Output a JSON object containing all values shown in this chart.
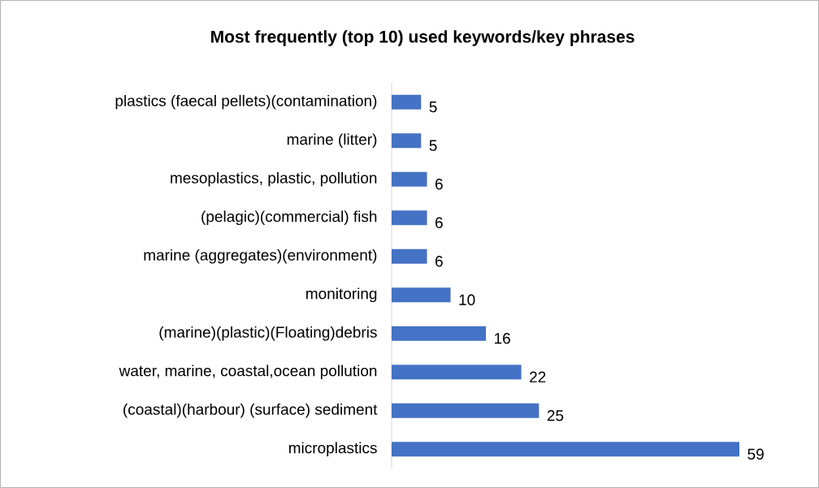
{
  "chart_data": {
    "type": "bar",
    "orientation": "horizontal",
    "title": "Most frequently (top 10) used keywords/key phrases",
    "categories": [
      "plastics (faecal pellets)(contamination)",
      "marine (litter)",
      "mesoplastics, plastic, pollution",
      "(pelagic)(commercial) fish",
      "marine (aggregates)(environment)",
      "monitoring",
      "(marine)(plastic)(Floating)debris",
      "water, marine, coastal,ocean pollution",
      "(coastal)(harbour) (surface) sediment",
      "microplastics"
    ],
    "values": [
      5,
      5,
      6,
      6,
      6,
      10,
      16,
      22,
      25,
      59
    ],
    "color": "#4472c4",
    "data_labels": true
  }
}
